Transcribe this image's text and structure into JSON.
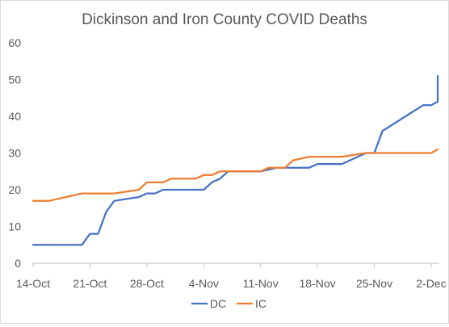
{
  "chart_data": {
    "type": "line",
    "title": "Dickinson and Iron County COVID Deaths",
    "xlabel": "",
    "ylabel": "",
    "ylim": [
      0,
      60
    ],
    "yticks": [
      0,
      10,
      20,
      30,
      40,
      50,
      60
    ],
    "xlim": [
      "2020-10-14",
      "2020-12-03"
    ],
    "xticks": [
      {
        "date": "2020-10-14",
        "label": "14-Oct"
      },
      {
        "date": "2020-10-21",
        "label": "21-Oct"
      },
      {
        "date": "2020-10-28",
        "label": "28-Oct"
      },
      {
        "date": "2020-11-04",
        "label": "4-Nov"
      },
      {
        "date": "2020-11-11",
        "label": "11-Nov"
      },
      {
        "date": "2020-11-18",
        "label": "18-Nov"
      },
      {
        "date": "2020-11-25",
        "label": "25-Nov"
      },
      {
        "date": "2020-12-02",
        "label": "2-Dec"
      }
    ],
    "grid": false,
    "legend": "bottom",
    "series": [
      {
        "name": "DC",
        "color": "#4472C4",
        "points": [
          [
            "2020-10-14",
            5
          ],
          [
            "2020-10-20",
            5
          ],
          [
            "2020-10-21",
            8
          ],
          [
            "2020-10-22",
            8
          ],
          [
            "2020-10-23",
            14
          ],
          [
            "2020-10-24",
            17
          ],
          [
            "2020-10-27",
            18
          ],
          [
            "2020-10-28",
            19
          ],
          [
            "2020-10-29",
            19
          ],
          [
            "2020-10-30",
            20
          ],
          [
            "2020-11-04",
            20
          ],
          [
            "2020-11-05",
            22
          ],
          [
            "2020-11-06",
            23
          ],
          [
            "2020-11-07",
            25
          ],
          [
            "2020-11-11",
            25
          ],
          [
            "2020-11-12",
            25.5
          ],
          [
            "2020-11-13",
            26
          ],
          [
            "2020-11-17",
            26
          ],
          [
            "2020-11-18",
            27
          ],
          [
            "2020-11-21",
            27
          ],
          [
            "2020-11-24",
            30
          ],
          [
            "2020-11-25",
            30
          ],
          [
            "2020-11-26",
            36
          ],
          [
            "2020-12-01",
            43
          ],
          [
            "2020-12-02",
            43
          ],
          [
            "2020-12-03",
            44
          ],
          [
            "2020-12-04",
            51
          ]
        ]
      },
      {
        "name": "IC",
        "color": "#ED7D31",
        "points": [
          [
            "2020-10-14",
            17
          ],
          [
            "2020-10-16",
            17
          ],
          [
            "2020-10-20",
            19
          ],
          [
            "2020-10-24",
            19
          ],
          [
            "2020-10-27",
            20
          ],
          [
            "2020-10-28",
            22
          ],
          [
            "2020-10-30",
            22
          ],
          [
            "2020-10-31",
            23
          ],
          [
            "2020-11-03",
            23
          ],
          [
            "2020-11-04",
            24
          ],
          [
            "2020-11-05",
            24
          ],
          [
            "2020-11-06",
            25
          ],
          [
            "2020-11-11",
            25
          ],
          [
            "2020-11-12",
            26
          ],
          [
            "2020-11-14",
            26
          ],
          [
            "2020-11-15",
            28
          ],
          [
            "2020-11-17",
            29
          ],
          [
            "2020-11-21",
            29
          ],
          [
            "2020-11-24",
            30
          ],
          [
            "2020-12-02",
            30
          ],
          [
            "2020-12-03",
            31
          ],
          [
            "2020-12-04",
            31
          ]
        ]
      }
    ]
  }
}
